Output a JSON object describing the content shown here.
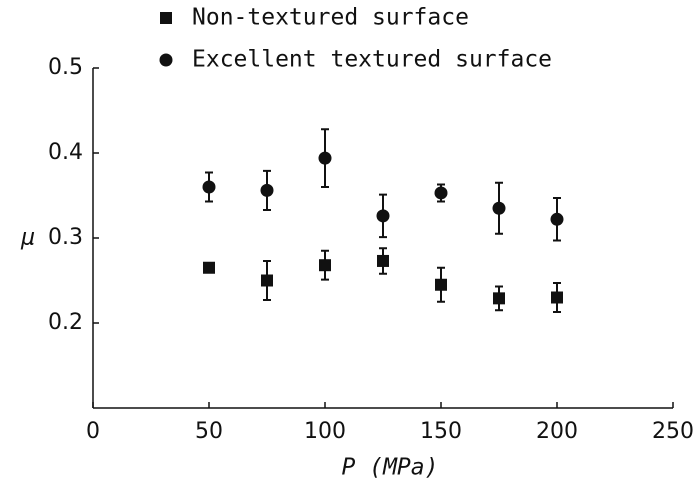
{
  "chart_data": {
    "type": "scatter",
    "xlabel": "P (MPa)",
    "ylabel": "μ",
    "xlim": [
      0,
      250
    ],
    "xticks": [
      0,
      50,
      100,
      150,
      200,
      250
    ],
    "ylim": [
      0.1,
      0.5
    ],
    "yticks": [
      0.2,
      0.3,
      0.4,
      0.5
    ],
    "legend": "top",
    "series": [
      {
        "name": "Non-textured surface",
        "marker": "square",
        "color": "#111111",
        "x": [
          50,
          75,
          100,
          125,
          150,
          175,
          200
        ],
        "values": [
          0.265,
          0.25,
          0.268,
          0.273,
          0.245,
          0.229,
          0.23
        ],
        "errors": [
          0,
          0.023,
          0.017,
          0.015,
          0.02,
          0.014,
          0.017
        ]
      },
      {
        "name": "Excellent textured surface",
        "marker": "circle",
        "color": "#111111",
        "x": [
          50,
          75,
          100,
          125,
          150,
          175,
          200
        ],
        "values": [
          0.36,
          0.356,
          0.394,
          0.326,
          0.353,
          0.335,
          0.322
        ],
        "errors": [
          0.017,
          0.023,
          0.034,
          0.025,
          0.01,
          0.03,
          0.025
        ]
      }
    ]
  }
}
